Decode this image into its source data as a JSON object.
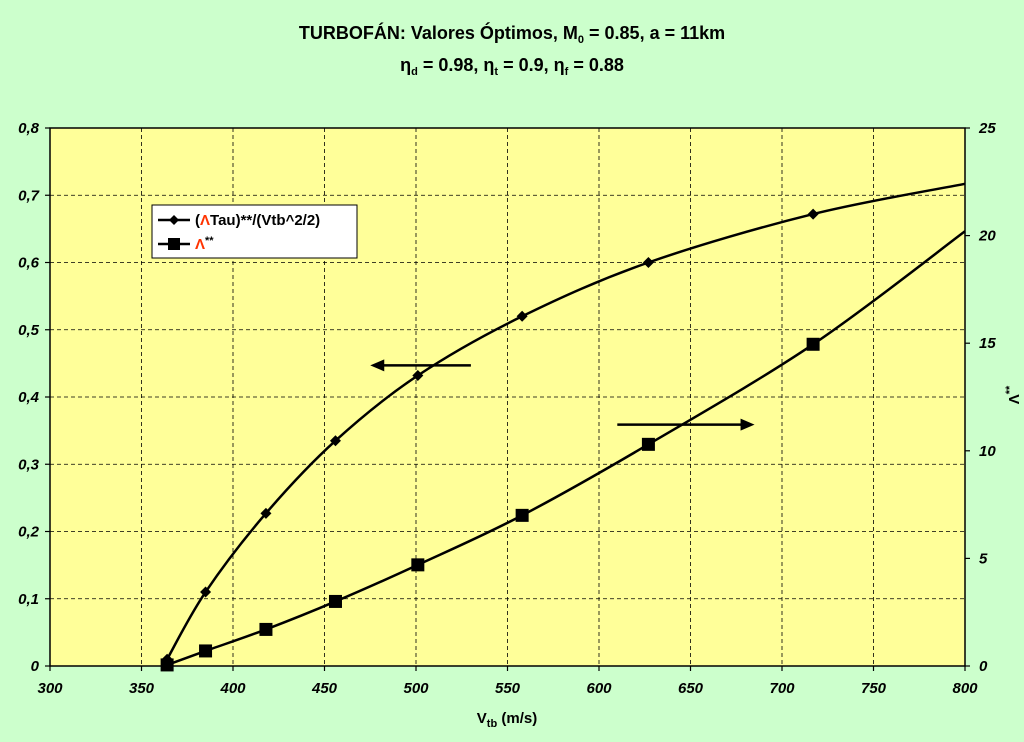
{
  "chart_data": {
    "type": "line",
    "title": {
      "line1": {
        "main": "TURBOFÁN",
        "rest_a": ": Valores Óptimos, M",
        "sub_a": "0",
        "rest_b": " = 0.85, a = 11km"
      },
      "line2": {
        "sym": "η",
        "sub_d": "d",
        "eq_d": " = 0.98, ",
        "sub_t": "t",
        "eq_t": " = 0.9, ",
        "sub_f": "f",
        "eq_f": " = 0.88"
      }
    },
    "xlabel": {
      "main": "V",
      "sub": "tb",
      "unit": " (m/s)"
    },
    "ylabel_right": {
      "main": "Λ",
      "sup": "**"
    },
    "xlim": [
      300,
      800
    ],
    "ylim_left": [
      0,
      0.8
    ],
    "ylim_right": [
      0,
      25
    ],
    "x_ticks": [
      "300",
      "350",
      "400",
      "450",
      "500",
      "550",
      "600",
      "650",
      "700",
      "750",
      "800"
    ],
    "y_left_ticks": [
      "0",
      "0,1",
      "0,2",
      "0,3",
      "0,4",
      "0,5",
      "0,6",
      "0,7",
      "0,8"
    ],
    "y_right_ticks": [
      "0",
      "5",
      "10",
      "15",
      "20",
      "25"
    ],
    "grid": true,
    "legend_placement": "top-left",
    "series": [
      {
        "name": "(ΛTau)**/(Vtb^2/2)",
        "legend_parts": {
          "open": "(",
          "sym": "Λ",
          "rest": "Tau)**/(Vtb^2/2)"
        },
        "axis": "left",
        "marker": "diamond",
        "x": [
          364,
          385,
          418,
          456,
          501,
          558,
          627,
          717
        ],
        "values": [
          0.01,
          0.11,
          0.227,
          0.335,
          0.432,
          0.52,
          0.6,
          0.672
        ],
        "curve_end": [
          800,
          0.717
        ]
      },
      {
        "name": "Λ**",
        "legend_parts": {
          "open": "",
          "sym": "Λ",
          "rest": "**"
        },
        "axis": "right",
        "marker": "square",
        "x": [
          364,
          385,
          418,
          456,
          501,
          558,
          627,
          717
        ],
        "values": [
          0.05,
          0.7,
          1.7,
          3.0,
          4.7,
          7.0,
          10.3,
          14.95
        ],
        "curve_end": [
          800,
          20.2
        ]
      }
    ],
    "annotations": [
      {
        "type": "arrow",
        "points_to": "left",
        "x_from": 530,
        "x_to": 475,
        "y": 0.447
      },
      {
        "type": "arrow",
        "points_to": "right",
        "x_from": 610,
        "x_to": 685,
        "y": 0.359
      }
    ],
    "colors": {
      "background": "#ccffcc",
      "plot_area": "#ffff99",
      "series": "#000000",
      "legend_symbol": "#ff3300"
    }
  }
}
